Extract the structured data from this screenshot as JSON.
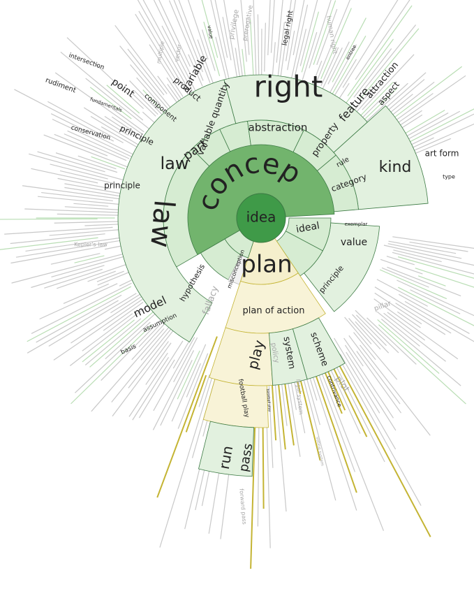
{
  "colors": {
    "green_root": "#3f9a48",
    "green_ring1": "#72b46d",
    "green_ring2": "#d6ecd2",
    "green_ring3": "#e2f1df",
    "green_leaf": "#b8ddb3",
    "yellow_ring1": "#f5efcc",
    "yellow_ring2": "#f8f3d7",
    "yellow_line": "#c4b433",
    "gray_line": "#c8c8c8",
    "gray_fill": "#f2f2f2",
    "stroke_green": "#3c7a44",
    "stroke_gray": "#b6b6b6",
    "text_dark": "#222222",
    "text_gray": "#a8a8a8"
  },
  "diagram": {
    "root": {
      "label": "idea"
    },
    "ring1": [
      {
        "label": "concept",
        "color": "green"
      },
      {
        "label": "plan",
        "color": "yellow"
      },
      {
        "label": "misconception",
        "color": "green"
      }
    ],
    "ring2": [
      {
        "label": "law"
      },
      {
        "label": "part"
      },
      {
        "label": "variable quantity"
      },
      {
        "label": "abstraction"
      },
      {
        "label": "property"
      },
      {
        "label": "rule"
      },
      {
        "label": "category"
      },
      {
        "label": "ideal"
      },
      {
        "label": "value"
      },
      {
        "label": "principle"
      },
      {
        "label": "hypothesis"
      },
      {
        "label": "fallacy"
      },
      {
        "label": "plan of action"
      }
    ],
    "ring3": [
      {
        "label": "law"
      },
      {
        "label": "principle"
      },
      {
        "label": "principle"
      },
      {
        "label": "conservation"
      },
      {
        "label": "component"
      },
      {
        "label": "point"
      },
      {
        "label": "intersection"
      },
      {
        "label": "rudiment"
      },
      {
        "label": "fundamentals"
      },
      {
        "label": "product"
      },
      {
        "label": "variable"
      },
      {
        "label": "value"
      },
      {
        "label": "right"
      },
      {
        "label": "legal right"
      },
      {
        "label": "human right"
      },
      {
        "label": "privilege"
      },
      {
        "label": "prerogative"
      },
      {
        "label": "feature"
      },
      {
        "label": "attraction"
      },
      {
        "label": "aspect"
      },
      {
        "label": "entree"
      },
      {
        "label": "kind"
      },
      {
        "label": "art form"
      },
      {
        "label": "type"
      },
      {
        "label": "model"
      },
      {
        "label": "assumption"
      },
      {
        "label": "basis"
      },
      {
        "label": "play"
      },
      {
        "label": "policy"
      },
      {
        "label": "system"
      },
      {
        "label": "scheme"
      },
      {
        "label": "plot"
      },
      {
        "label": "contrivance"
      },
      {
        "label": "legal system"
      },
      {
        "label": "voting system"
      },
      {
        "label": "pillar"
      },
      {
        "label": "exemplar"
      },
      {
        "label": "vector"
      },
      {
        "label": "multiple"
      },
      {
        "label": "Kepler's law"
      }
    ],
    "ring4": [
      {
        "label": "football play"
      },
      {
        "label": "run"
      },
      {
        "label": "pass"
      },
      {
        "label": "forward pass"
      },
      {
        "label": "baseball play"
      }
    ]
  }
}
